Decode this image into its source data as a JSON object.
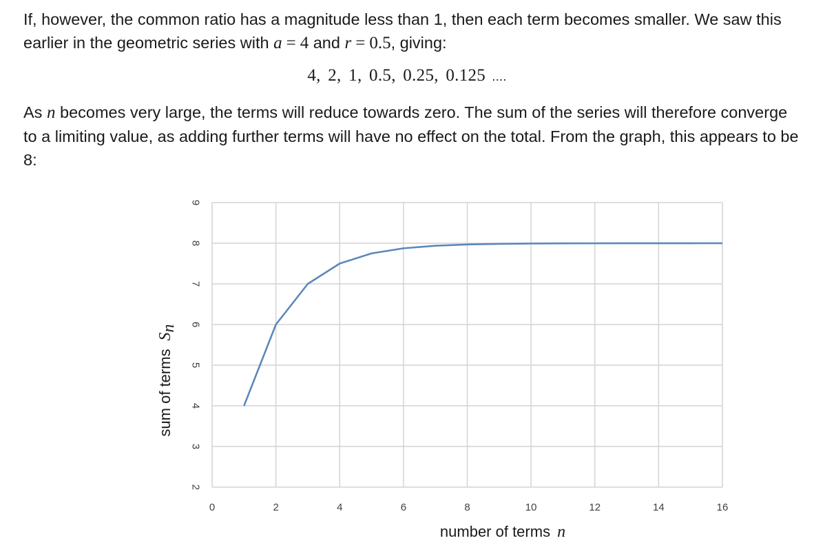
{
  "text": {
    "p1_part1": "If, however, the common ratio has a magnitude less than 1, then each term becomes smaller.  We saw this earlier in the geometric series with ",
    "var_a": "a",
    "eq": "=",
    "a_value": "4",
    "and": " and ",
    "var_r": "r",
    "r_value": "0.5",
    "p1_part2": ", giving:",
    "sequence": "4,  2,  1,  0.5,  0.25,  0.125",
    "sequence_dots": " ....",
    "p2_part1": "As ",
    "var_n": "n",
    "p2_part2": " becomes very large, the terms will reduce towards zero. The sum of the series will therefore converge to a limiting value, as adding further terms will have no effect on the total.  From the graph, this appears to be 8:"
  },
  "colors": {
    "series": "#5b88b9",
    "grid": "#d4d4d4"
  },
  "chart_data": {
    "type": "line",
    "xlabel": "number of terms",
    "xlabel_var": "n",
    "ylabel": "sum of terms",
    "ylabel_var": "S",
    "ylabel_var_sub": "n",
    "xlim": [
      0,
      16
    ],
    "ylim": [
      2,
      9
    ],
    "xticks": [
      0,
      2,
      4,
      6,
      8,
      10,
      12,
      14,
      16
    ],
    "yticks": [
      2,
      3,
      4,
      5,
      6,
      7,
      8,
      9
    ],
    "grid": true,
    "x_tick_step_minor": 1,
    "series": [
      {
        "x": [
          1,
          2,
          3,
          4,
          5,
          6,
          7,
          8,
          9,
          10,
          11,
          12,
          13,
          14,
          15,
          16
        ],
        "values": [
          4,
          6,
          7,
          7.5,
          7.75,
          7.875,
          7.9375,
          7.96875,
          7.984375,
          7.9921875,
          7.99609375,
          7.998046875,
          7.9990234375,
          7.99951171875,
          7.999755859375,
          7.9998779296875
        ]
      }
    ]
  }
}
